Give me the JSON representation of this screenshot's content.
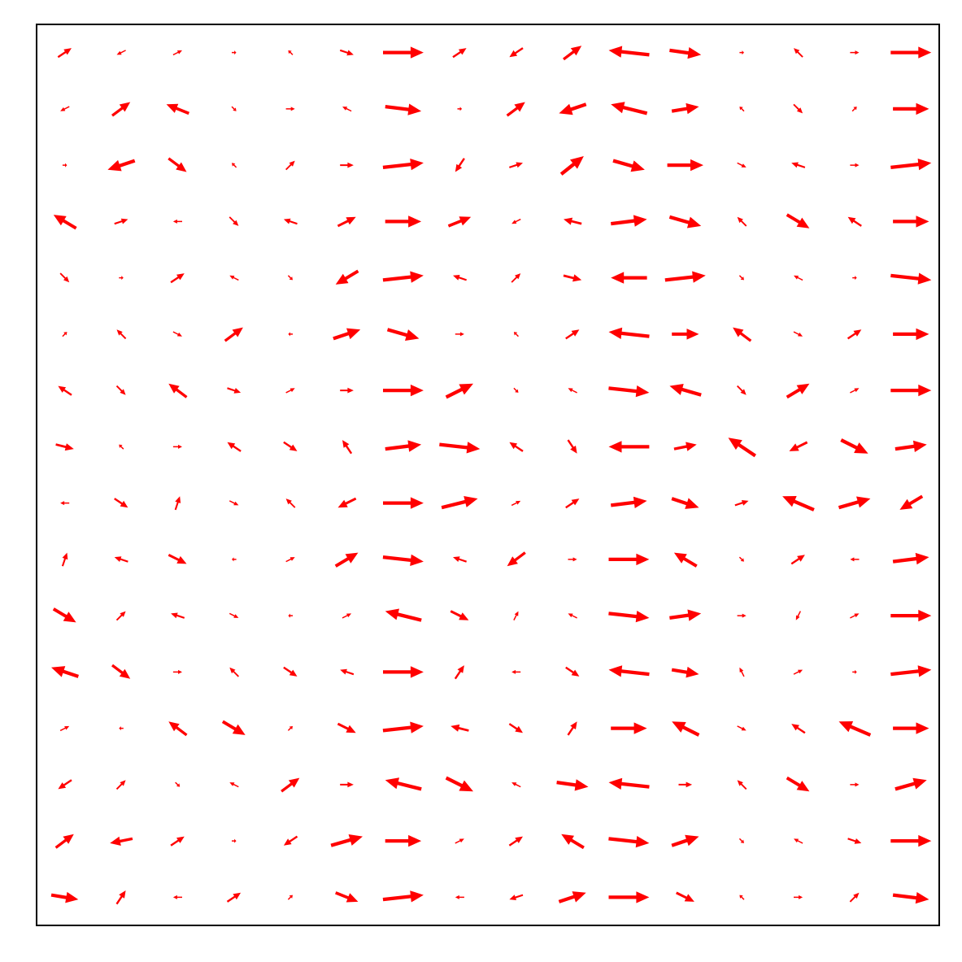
{
  "chart_data": {
    "type": "quiver",
    "color": "#ff0000",
    "xlim": [
      0,
      16
    ],
    "ylim": [
      0,
      16
    ],
    "x": [
      0.5,
      1.5,
      2.5,
      3.5,
      4.5,
      5.5,
      6.5,
      7.5,
      8.5,
      9.5,
      10.5,
      11.5,
      12.5,
      13.5,
      14.5,
      15.5
    ],
    "y": [
      15.5,
      14.5,
      13.5,
      12.5,
      11.5,
      10.5,
      9.5,
      8.5,
      7.5,
      6.5,
      5.5,
      4.5,
      3.5,
      2.5,
      1.5,
      0.5
    ],
    "u": [
      [
        0.3,
        -0.2,
        0.2,
        0.1,
        -0.1,
        0.3,
        0.9,
        0.3,
        -0.3,
        0.4,
        -0.9,
        0.7,
        0.1,
        -0.2,
        0.2,
        0.9
      ],
      [
        -0.2,
        0.4,
        -0.5,
        0.1,
        0.2,
        -0.2,
        0.8,
        0.1,
        0.4,
        -0.6,
        -0.8,
        0.6,
        -0.1,
        0.2,
        0.1,
        0.8
      ],
      [
        0.1,
        -0.6,
        0.4,
        -0.1,
        0.2,
        0.3,
        0.9,
        -0.2,
        0.3,
        0.5,
        0.7,
        0.8,
        0.2,
        -0.3,
        0.2,
        0.9
      ],
      [
        -0.5,
        0.3,
        -0.2,
        0.2,
        -0.3,
        0.4,
        0.8,
        0.5,
        -0.2,
        -0.4,
        0.8,
        0.7,
        -0.2,
        0.5,
        -0.3,
        0.8
      ],
      [
        0.2,
        0.1,
        0.3,
        -0.2,
        0.1,
        -0.5,
        0.9,
        -0.3,
        0.2,
        0.4,
        -0.8,
        0.9,
        0.1,
        -0.2,
        0.1,
        0.9
      ],
      [
        0.1,
        -0.2,
        0.2,
        0.4,
        -0.1,
        0.6,
        0.7,
        0.2,
        -0.1,
        0.3,
        -0.9,
        0.6,
        -0.4,
        0.2,
        0.3,
        0.8
      ],
      [
        -0.3,
        0.2,
        -0.4,
        0.3,
        0.2,
        0.3,
        0.9,
        0.6,
        0.1,
        -0.2,
        0.9,
        -0.7,
        0.2,
        0.5,
        0.2,
        0.9
      ],
      [
        0.4,
        -0.1,
        0.2,
        -0.3,
        0.3,
        -0.2,
        0.8,
        0.9,
        -0.3,
        0.2,
        -0.9,
        0.5,
        -0.6,
        -0.4,
        0.6,
        0.7
      ],
      [
        -0.2,
        0.3,
        0.1,
        0.2,
        -0.2,
        -0.4,
        0.9,
        0.8,
        0.2,
        0.3,
        0.8,
        0.6,
        0.3,
        -0.7,
        0.7,
        -0.5
      ],
      [
        0.1,
        -0.3,
        0.4,
        -0.1,
        0.2,
        0.5,
        0.9,
        -0.3,
        -0.4,
        0.2,
        0.9,
        -0.5,
        0.1,
        0.3,
        -0.2,
        0.8
      ],
      [
        0.5,
        0.2,
        -0.3,
        0.2,
        -0.1,
        0.2,
        -0.8,
        0.4,
        0.1,
        -0.2,
        0.9,
        0.7,
        0.2,
        -0.1,
        0.2,
        0.9
      ],
      [
        -0.6,
        0.4,
        0.2,
        -0.2,
        0.3,
        -0.3,
        0.9,
        0.2,
        -0.2,
        0.3,
        -0.9,
        0.6,
        -0.1,
        0.2,
        0.1,
        0.9
      ],
      [
        0.2,
        -0.1,
        -0.4,
        0.5,
        0.1,
        0.4,
        0.9,
        -0.4,
        0.3,
        0.2,
        0.8,
        -0.6,
        0.2,
        -0.3,
        -0.7,
        0.8
      ],
      [
        -0.3,
        0.2,
        0.1,
        -0.2,
        0.4,
        0.3,
        -0.8,
        0.6,
        -0.2,
        0.7,
        -0.9,
        0.3,
        -0.2,
        0.5,
        0.2,
        0.7
      ],
      [
        0.4,
        -0.5,
        0.3,
        0.1,
        -0.3,
        0.7,
        0.8,
        0.2,
        0.3,
        -0.5,
        0.9,
        0.6,
        0.1,
        -0.2,
        0.3,
        0.9
      ],
      [
        0.6,
        0.2,
        -0.2,
        0.3,
        0.1,
        0.5,
        0.9,
        -0.2,
        -0.3,
        0.6,
        0.9,
        0.4,
        -0.1,
        0.2,
        0.2,
        0.8
      ]
    ],
    "v": [
      [
        0.2,
        -0.1,
        0.1,
        0.0,
        0.1,
        -0.1,
        0.0,
        0.2,
        -0.2,
        0.3,
        0.1,
        -0.1,
        0.0,
        0.2,
        0.0,
        0.0
      ],
      [
        -0.1,
        0.3,
        0.2,
        -0.1,
        0.0,
        0.1,
        -0.1,
        0.0,
        0.3,
        -0.2,
        0.2,
        0.1,
        0.1,
        -0.2,
        0.1,
        0.0
      ],
      [
        0.0,
        -0.2,
        -0.3,
        0.1,
        0.2,
        0.0,
        0.1,
        -0.3,
        0.1,
        0.4,
        -0.2,
        0.0,
        -0.1,
        0.1,
        0.0,
        0.1
      ],
      [
        0.3,
        0.1,
        0.0,
        -0.2,
        0.1,
        0.2,
        0.0,
        0.2,
        -0.1,
        0.1,
        0.1,
        -0.2,
        0.2,
        -0.3,
        0.2,
        0.0
      ],
      [
        -0.2,
        0.0,
        0.2,
        0.1,
        -0.1,
        -0.3,
        0.1,
        0.1,
        0.2,
        -0.1,
        0.0,
        0.1,
        -0.1,
        0.1,
        0.0,
        -0.1
      ],
      [
        0.1,
        0.2,
        -0.1,
        0.3,
        0.0,
        0.2,
        -0.2,
        0.0,
        0.1,
        0.2,
        0.1,
        0.0,
        0.3,
        -0.1,
        0.2,
        0.0
      ],
      [
        0.2,
        -0.2,
        0.3,
        -0.1,
        0.1,
        0.0,
        0.0,
        0.3,
        -0.1,
        0.1,
        -0.1,
        0.2,
        -0.2,
        0.3,
        0.1,
        0.0
      ],
      [
        -0.1,
        0.1,
        0.0,
        0.2,
        -0.2,
        0.3,
        0.1,
        -0.1,
        0.2,
        -0.3,
        0.0,
        0.1,
        0.4,
        -0.2,
        -0.3,
        0.1
      ],
      [
        0.0,
        -0.2,
        0.3,
        -0.1,
        0.2,
        -0.2,
        0.0,
        0.2,
        0.1,
        0.2,
        0.1,
        -0.2,
        0.1,
        0.3,
        0.2,
        -0.3
      ],
      [
        0.3,
        0.1,
        -0.2,
        0.0,
        0.1,
        0.3,
        -0.1,
        0.1,
        -0.3,
        0.0,
        0.0,
        0.3,
        -0.1,
        0.2,
        0.0,
        0.1
      ],
      [
        -0.3,
        0.2,
        0.1,
        -0.1,
        0.0,
        0.1,
        0.2,
        -0.2,
        0.2,
        0.1,
        -0.1,
        0.1,
        0.0,
        -0.2,
        0.1,
        0.0
      ],
      [
        0.2,
        -0.3,
        0.0,
        0.2,
        -0.2,
        0.1,
        0.0,
        0.3,
        0.0,
        -0.2,
        0.1,
        -0.1,
        0.2,
        0.1,
        0.0,
        0.1
      ],
      [
        0.1,
        0.0,
        0.3,
        -0.3,
        0.1,
        -0.2,
        0.1,
        0.1,
        -0.2,
        0.3,
        0.0,
        0.3,
        -0.1,
        0.2,
        0.3,
        0.0
      ],
      [
        -0.2,
        0.2,
        -0.1,
        0.1,
        0.3,
        0.0,
        0.2,
        -0.3,
        0.1,
        -0.1,
        0.1,
        0.0,
        0.2,
        -0.3,
        0.0,
        0.2
      ],
      [
        0.3,
        -0.1,
        0.2,
        0.0,
        -0.2,
        0.2,
        0.0,
        0.1,
        0.2,
        0.3,
        -0.1,
        0.2,
        -0.1,
        0.1,
        -0.1,
        0.0
      ],
      [
        -0.1,
        0.3,
        0.0,
        0.2,
        0.1,
        -0.2,
        0.1,
        0.0,
        -0.1,
        0.2,
        0.0,
        -0.2,
        0.1,
        0.0,
        0.2,
        -0.1
      ]
    ]
  }
}
